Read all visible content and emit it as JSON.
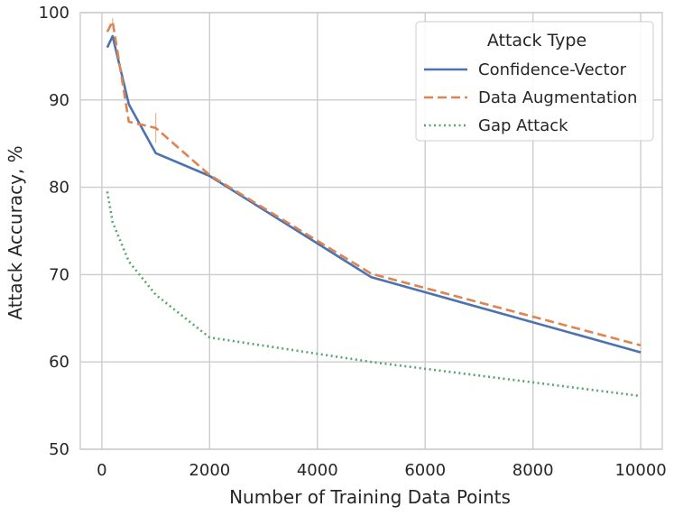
{
  "chart_data": {
    "type": "line",
    "xlabel": "Number of Training Data Points",
    "ylabel": "Attack Accuracy, %",
    "xlim": [
      -400,
      10400
    ],
    "ylim": [
      50,
      100
    ],
    "x_ticks": [
      0,
      2000,
      4000,
      6000,
      8000,
      10000
    ],
    "y_ticks": [
      50,
      60,
      70,
      80,
      90,
      100
    ],
    "grid": true,
    "legend": {
      "title": "Attack Type",
      "position": "top-right"
    },
    "series": [
      {
        "name": "Confidence-Vector",
        "color": "#4c72b0",
        "style": "solid",
        "x": [
          100,
          200,
          500,
          1000,
          2000,
          5000,
          10000
        ],
        "y": [
          96.0,
          97.3,
          89.5,
          83.9,
          81.3,
          69.7,
          61.1
        ]
      },
      {
        "name": "Data Augmentation",
        "color": "#dd8452",
        "style": "dashed",
        "x": [
          100,
          200,
          500,
          1000,
          2000,
          5000,
          10000
        ],
        "y": [
          97.8,
          99.0,
          87.5,
          86.8,
          81.4,
          70.1,
          61.9
        ],
        "error": [
          0,
          0.4,
          0,
          1.7,
          0,
          0,
          0
        ]
      },
      {
        "name": "Gap Attack",
        "color": "#55a868",
        "style": "dotted",
        "x": [
          100,
          200,
          500,
          1000,
          2000,
          5000,
          10000
        ],
        "y": [
          79.5,
          76.0,
          71.5,
          67.7,
          62.8,
          60.0,
          56.1
        ]
      }
    ]
  }
}
